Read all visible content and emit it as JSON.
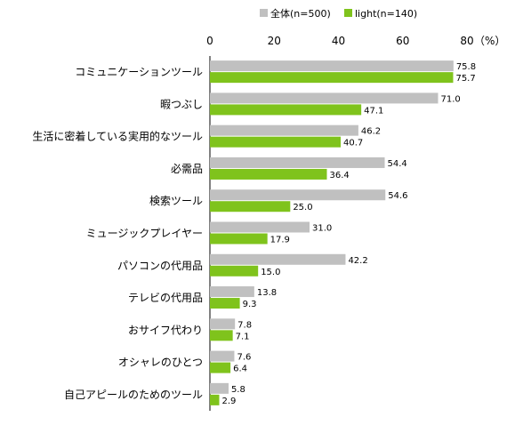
{
  "chart_data": {
    "type": "bar",
    "orientation": "horizontal",
    "categories": [
      "コミュニケーションツール",
      "暇つぶし",
      "生活に密着している実用的なツール",
      "必需品",
      "検索ツール",
      "ミュージックプレイヤー",
      "パソコンの代用品",
      "テレビの代用品",
      "おサイフ代わり",
      "オシャレのひとつ",
      "自己アピールのためのツール"
    ],
    "series": [
      {
        "name": "全体(n=500)",
        "color": "#c0c0c0",
        "values": [
          75.8,
          71.0,
          46.2,
          54.4,
          54.6,
          31.0,
          42.2,
          13.8,
          7.8,
          7.6,
          5.8
        ]
      },
      {
        "name": "light(n=140)",
        "color": "#7fc31c",
        "values": [
          75.7,
          47.1,
          40.7,
          36.4,
          25.0,
          17.9,
          15.0,
          9.3,
          7.1,
          6.4,
          2.9
        ]
      }
    ],
    "xlim": [
      0,
      80
    ],
    "ticks": [
      0,
      20,
      40,
      60,
      80
    ],
    "unit_label": "（%）",
    "legend_position": "top",
    "grid": false,
    "data_labels": true
  }
}
